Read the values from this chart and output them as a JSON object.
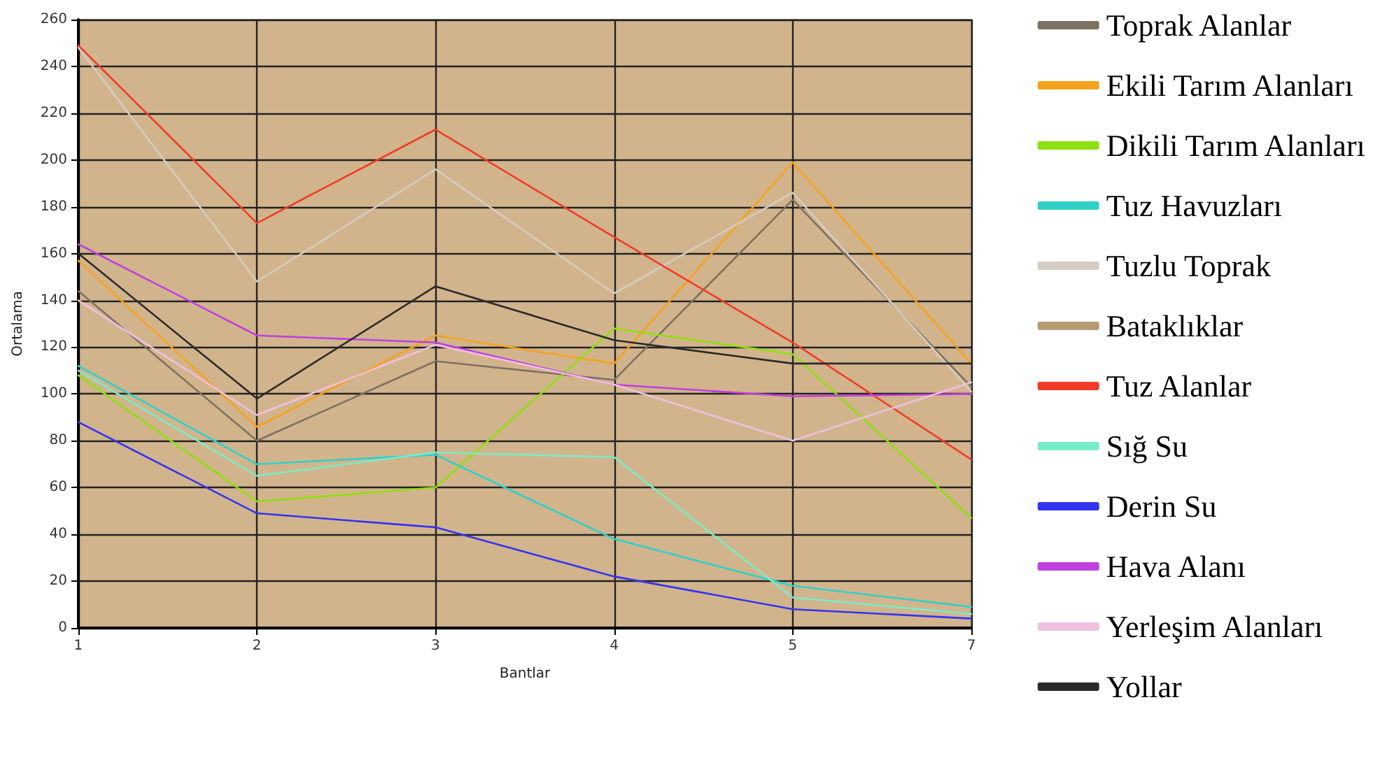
{
  "chart_data": {
    "type": "line",
    "xlabel": "Bantlar",
    "ylabel": "Ortalama",
    "categories": [
      "1",
      "2",
      "3",
      "4",
      "5",
      "7"
    ],
    "ylim": [
      0,
      260
    ],
    "yticks": [
      0,
      20,
      40,
      60,
      80,
      100,
      120,
      140,
      160,
      180,
      200,
      220,
      240,
      260
    ],
    "grid": true,
    "legend": "right",
    "line_style": "solid",
    "marker": "none",
    "series": [
      {
        "name": "Toprak Alanlar",
        "color": "#7d7262",
        "values": [
          144,
          80,
          114,
          106,
          183,
          103
        ]
      },
      {
        "name": "Ekili Tarım Alanları",
        "color": "#f5a21e",
        "values": [
          157,
          86,
          125,
          113,
          199,
          113
        ]
      },
      {
        "name": "Dikili Tarım Alanları",
        "color": "#8ee010",
        "values": [
          108,
          54,
          60,
          128,
          117,
          47
        ]
      },
      {
        "name": "Tuz Havuzları",
        "color": "#30d0c8",
        "values": [
          112,
          70,
          74,
          38,
          18,
          9
        ]
      },
      {
        "name": "Tuzlu Toprak",
        "color": "#d4ccc2",
        "values": [
          248,
          148,
          196,
          143,
          186,
          101
        ]
      },
      {
        "name": "Bataklıklar",
        "color": "#b89a72",
        "values": [
          null,
          null,
          null,
          null,
          null,
          null
        ]
      },
      {
        "name": "Tuz Alanlar",
        "color": "#f03c28",
        "values": [
          249,
          173,
          213,
          167,
          122,
          72
        ]
      },
      {
        "name": "Sığ Su",
        "color": "#78ecc8",
        "values": [
          110,
          65,
          75,
          73,
          13,
          6
        ]
      },
      {
        "name": "Derin Su",
        "color": "#3434f0",
        "values": [
          88,
          49,
          43,
          22,
          8,
          4
        ]
      },
      {
        "name": "Hava Alanı",
        "color": "#c040e0",
        "values": [
          164,
          125,
          122,
          104,
          99,
          100
        ]
      },
      {
        "name": "Yerleşim Alanları",
        "color": "#f0c0e0",
        "values": [
          140,
          91,
          121,
          104,
          80,
          105
        ]
      },
      {
        "name": "Yollar",
        "color": "#2a2a2a",
        "values": [
          160,
          98,
          146,
          123,
          113,
          113
        ]
      }
    ]
  }
}
